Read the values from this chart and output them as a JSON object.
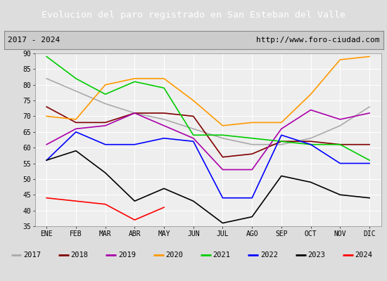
{
  "title": "Evolucion del paro registrado en San Esteban del Valle",
  "subtitle_left": "2017 - 2024",
  "subtitle_right": "http://www.foro-ciudad.com",
  "months": [
    "ENE",
    "FEB",
    "MAR",
    "ABR",
    "MAY",
    "JUN",
    "JUL",
    "AGO",
    "SEP",
    "OCT",
    "NOV",
    "DIC"
  ],
  "series": {
    "2017": {
      "color": "#aaaaaa",
      "data": [
        82,
        78,
        74,
        71,
        69,
        66,
        63,
        61,
        61,
        63,
        67,
        73
      ]
    },
    "2018": {
      "color": "#800000",
      "data": [
        73,
        68,
        68,
        71,
        71,
        70,
        57,
        58,
        62,
        62,
        61,
        61
      ]
    },
    "2019": {
      "color": "#aa00aa",
      "data": [
        61,
        66,
        67,
        71,
        67,
        63,
        53,
        53,
        66,
        72,
        69,
        71
      ]
    },
    "2020": {
      "color": "#ff9900",
      "data": [
        70,
        69,
        80,
        82,
        82,
        75,
        67,
        68,
        68,
        77,
        88,
        89
      ]
    },
    "2021": {
      "color": "#00cc00",
      "data": [
        89,
        82,
        77,
        81,
        79,
        64,
        64,
        63,
        62,
        61,
        61,
        56
      ]
    },
    "2022": {
      "color": "#0000ff",
      "data": [
        56,
        65,
        61,
        61,
        63,
        62,
        44,
        44,
        64,
        61,
        55,
        55
      ]
    },
    "2023": {
      "color": "#000000",
      "data": [
        56,
        59,
        52,
        43,
        47,
        43,
        36,
        38,
        51,
        49,
        45,
        44
      ]
    },
    "2024": {
      "color": "#ff0000",
      "data": [
        44,
        43,
        42,
        37,
        41,
        null,
        null,
        null,
        null,
        null,
        null,
        null
      ]
    }
  },
  "ylim": [
    35,
    90
  ],
  "yticks": [
    35,
    40,
    45,
    50,
    55,
    60,
    65,
    70,
    75,
    80,
    85,
    90
  ],
  "bg_color": "#dddddd",
  "plot_bg_color": "#eeeeee",
  "title_bg_color": "#5599cc",
  "title_text_color": "#ffffff",
  "grid_color": "#ffffff",
  "legend_bg_color": "#eeeeee",
  "subtitle_bg_color": "#cccccc"
}
